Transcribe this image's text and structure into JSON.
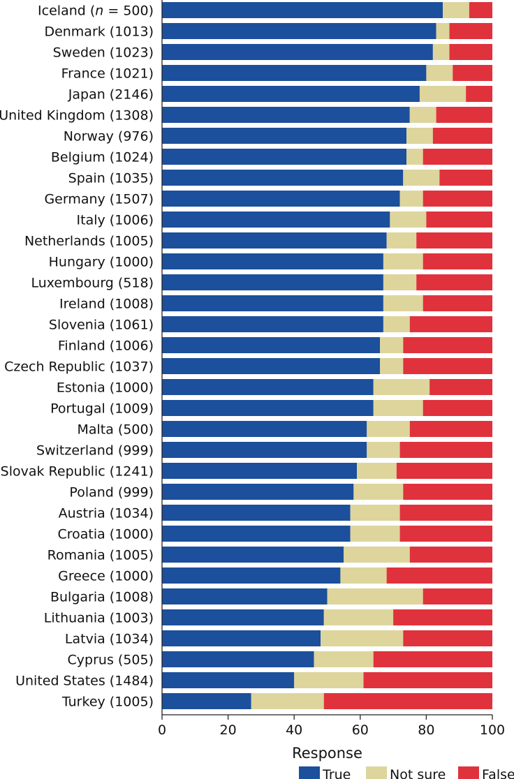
{
  "chart_data": {
    "type": "bar",
    "orientation": "horizontal",
    "stacked": true,
    "xlabel": "Response",
    "xlim": [
      0,
      100
    ],
    "xticks": [
      0,
      20,
      40,
      60,
      80,
      100
    ],
    "grid": false,
    "legend_position": "bottom",
    "categories": [
      {
        "country": "Iceland",
        "n_prefix": "n = ",
        "n": "500"
      },
      {
        "country": "Denmark",
        "n": "1013"
      },
      {
        "country": "Sweden",
        "n": "1023"
      },
      {
        "country": "France",
        "n": "1021"
      },
      {
        "country": "Japan",
        "n": "2146"
      },
      {
        "country": "United Kingdom",
        "n": "1308"
      },
      {
        "country": "Norway",
        "n": "976"
      },
      {
        "country": "Belgium",
        "n": "1024"
      },
      {
        "country": "Spain",
        "n": "1035"
      },
      {
        "country": "Germany",
        "n": "1507"
      },
      {
        "country": "Italy",
        "n": "1006"
      },
      {
        "country": "Netherlands",
        "n": "1005"
      },
      {
        "country": "Hungary",
        "n": "1000"
      },
      {
        "country": "Luxembourg",
        "n": "518"
      },
      {
        "country": "Ireland",
        "n": "1008"
      },
      {
        "country": "Slovenia",
        "n": "1061"
      },
      {
        "country": "Finland",
        "n": "1006"
      },
      {
        "country": "Czech Republic",
        "n": "1037"
      },
      {
        "country": "Estonia",
        "n": "1000"
      },
      {
        "country": "Portugal",
        "n": "1009"
      },
      {
        "country": "Malta",
        "n": "500"
      },
      {
        "country": "Switzerland",
        "n": "999"
      },
      {
        "country": "Slovak Republic",
        "n": "1241"
      },
      {
        "country": "Poland",
        "n": "999"
      },
      {
        "country": "Austria",
        "n": "1034"
      },
      {
        "country": "Croatia",
        "n": "1000"
      },
      {
        "country": "Romania",
        "n": "1005"
      },
      {
        "country": "Greece",
        "n": "1000"
      },
      {
        "country": "Bulgaria",
        "n": "1008"
      },
      {
        "country": "Lithuania",
        "n": "1003"
      },
      {
        "country": "Latvia",
        "n": "1034"
      },
      {
        "country": "Cyprus",
        "n": "505"
      },
      {
        "country": "United States",
        "n": "1484"
      },
      {
        "country": "Turkey",
        "n": "1005"
      }
    ],
    "series": [
      {
        "name": "True",
        "color": "#1c4f9c",
        "values": [
          85,
          83,
          82,
          80,
          78,
          75,
          74,
          74,
          73,
          72,
          69,
          68,
          67,
          67,
          67,
          67,
          66,
          66,
          64,
          64,
          62,
          62,
          59,
          58,
          57,
          57,
          55,
          54,
          50,
          49,
          48,
          46,
          40,
          27
        ]
      },
      {
        "name": "Not sure",
        "color": "#ddd59c",
        "values": [
          8,
          4,
          5,
          8,
          14,
          8,
          8,
          5,
          11,
          7,
          11,
          9,
          12,
          10,
          12,
          8,
          7,
          7,
          17,
          15,
          13,
          10,
          12,
          15,
          15,
          15,
          20,
          14,
          29,
          21,
          25,
          18,
          21,
          22
        ]
      },
      {
        "name": "False",
        "color": "#e0323c",
        "values": [
          7,
          13,
          13,
          12,
          8,
          17,
          18,
          21,
          16,
          21,
          20,
          23,
          21,
          23,
          21,
          25,
          27,
          27,
          19,
          21,
          25,
          28,
          29,
          27,
          28,
          28,
          25,
          32,
          21,
          30,
          27,
          36,
          39,
          51
        ]
      }
    ]
  }
}
